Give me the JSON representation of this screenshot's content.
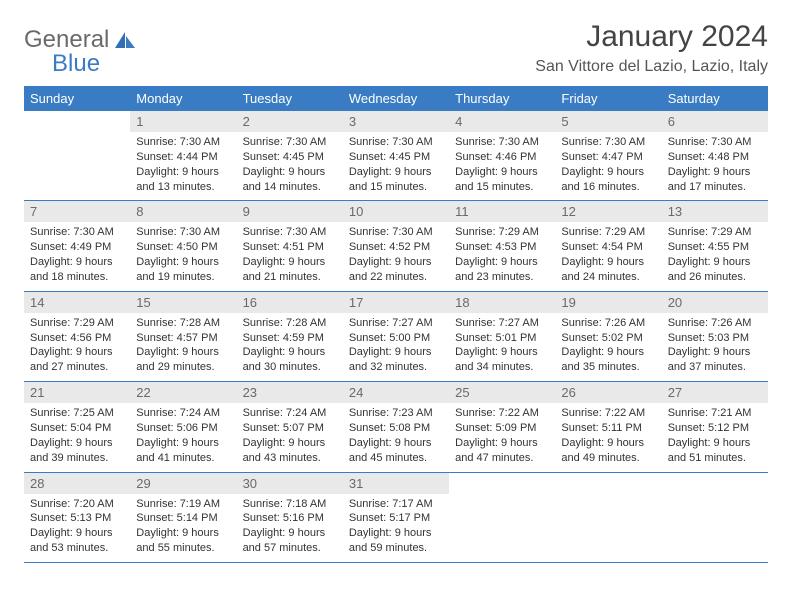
{
  "logo": {
    "text_general": "General",
    "text_blue": "Blue",
    "accent": "#3a7cc4",
    "grey": "#6a6a6a"
  },
  "title": "January 2024",
  "location": "San Vittore del Lazio, Lazio, Italy",
  "header_bg": "#3a7cc4",
  "daynum_bg": "#e9e9e9",
  "day_labels": [
    "Sunday",
    "Monday",
    "Tuesday",
    "Wednesday",
    "Thursday",
    "Friday",
    "Saturday"
  ],
  "weeks": [
    [
      null,
      {
        "n": "1",
        "sr": "7:30 AM",
        "ss": "4:44 PM",
        "dl": "9 hours and 13 minutes."
      },
      {
        "n": "2",
        "sr": "7:30 AM",
        "ss": "4:45 PM",
        "dl": "9 hours and 14 minutes."
      },
      {
        "n": "3",
        "sr": "7:30 AM",
        "ss": "4:45 PM",
        "dl": "9 hours and 15 minutes."
      },
      {
        "n": "4",
        "sr": "7:30 AM",
        "ss": "4:46 PM",
        "dl": "9 hours and 15 minutes."
      },
      {
        "n": "5",
        "sr": "7:30 AM",
        "ss": "4:47 PM",
        "dl": "9 hours and 16 minutes."
      },
      {
        "n": "6",
        "sr": "7:30 AM",
        "ss": "4:48 PM",
        "dl": "9 hours and 17 minutes."
      }
    ],
    [
      {
        "n": "7",
        "sr": "7:30 AM",
        "ss": "4:49 PM",
        "dl": "9 hours and 18 minutes."
      },
      {
        "n": "8",
        "sr": "7:30 AM",
        "ss": "4:50 PM",
        "dl": "9 hours and 19 minutes."
      },
      {
        "n": "9",
        "sr": "7:30 AM",
        "ss": "4:51 PM",
        "dl": "9 hours and 21 minutes."
      },
      {
        "n": "10",
        "sr": "7:30 AM",
        "ss": "4:52 PM",
        "dl": "9 hours and 22 minutes."
      },
      {
        "n": "11",
        "sr": "7:29 AM",
        "ss": "4:53 PM",
        "dl": "9 hours and 23 minutes."
      },
      {
        "n": "12",
        "sr": "7:29 AM",
        "ss": "4:54 PM",
        "dl": "9 hours and 24 minutes."
      },
      {
        "n": "13",
        "sr": "7:29 AM",
        "ss": "4:55 PM",
        "dl": "9 hours and 26 minutes."
      }
    ],
    [
      {
        "n": "14",
        "sr": "7:29 AM",
        "ss": "4:56 PM",
        "dl": "9 hours and 27 minutes."
      },
      {
        "n": "15",
        "sr": "7:28 AM",
        "ss": "4:57 PM",
        "dl": "9 hours and 29 minutes."
      },
      {
        "n": "16",
        "sr": "7:28 AM",
        "ss": "4:59 PM",
        "dl": "9 hours and 30 minutes."
      },
      {
        "n": "17",
        "sr": "7:27 AM",
        "ss": "5:00 PM",
        "dl": "9 hours and 32 minutes."
      },
      {
        "n": "18",
        "sr": "7:27 AM",
        "ss": "5:01 PM",
        "dl": "9 hours and 34 minutes."
      },
      {
        "n": "19",
        "sr": "7:26 AM",
        "ss": "5:02 PM",
        "dl": "9 hours and 35 minutes."
      },
      {
        "n": "20",
        "sr": "7:26 AM",
        "ss": "5:03 PM",
        "dl": "9 hours and 37 minutes."
      }
    ],
    [
      {
        "n": "21",
        "sr": "7:25 AM",
        "ss": "5:04 PM",
        "dl": "9 hours and 39 minutes."
      },
      {
        "n": "22",
        "sr": "7:24 AM",
        "ss": "5:06 PM",
        "dl": "9 hours and 41 minutes."
      },
      {
        "n": "23",
        "sr": "7:24 AM",
        "ss": "5:07 PM",
        "dl": "9 hours and 43 minutes."
      },
      {
        "n": "24",
        "sr": "7:23 AM",
        "ss": "5:08 PM",
        "dl": "9 hours and 45 minutes."
      },
      {
        "n": "25",
        "sr": "7:22 AM",
        "ss": "5:09 PM",
        "dl": "9 hours and 47 minutes."
      },
      {
        "n": "26",
        "sr": "7:22 AM",
        "ss": "5:11 PM",
        "dl": "9 hours and 49 minutes."
      },
      {
        "n": "27",
        "sr": "7:21 AM",
        "ss": "5:12 PM",
        "dl": "9 hours and 51 minutes."
      }
    ],
    [
      {
        "n": "28",
        "sr": "7:20 AM",
        "ss": "5:13 PM",
        "dl": "9 hours and 53 minutes."
      },
      {
        "n": "29",
        "sr": "7:19 AM",
        "ss": "5:14 PM",
        "dl": "9 hours and 55 minutes."
      },
      {
        "n": "30",
        "sr": "7:18 AM",
        "ss": "5:16 PM",
        "dl": "9 hours and 57 minutes."
      },
      {
        "n": "31",
        "sr": "7:17 AM",
        "ss": "5:17 PM",
        "dl": "9 hours and 59 minutes."
      },
      null,
      null,
      null
    ]
  ],
  "labels": {
    "sunrise": "Sunrise:",
    "sunset": "Sunset:",
    "daylight": "Daylight:"
  }
}
